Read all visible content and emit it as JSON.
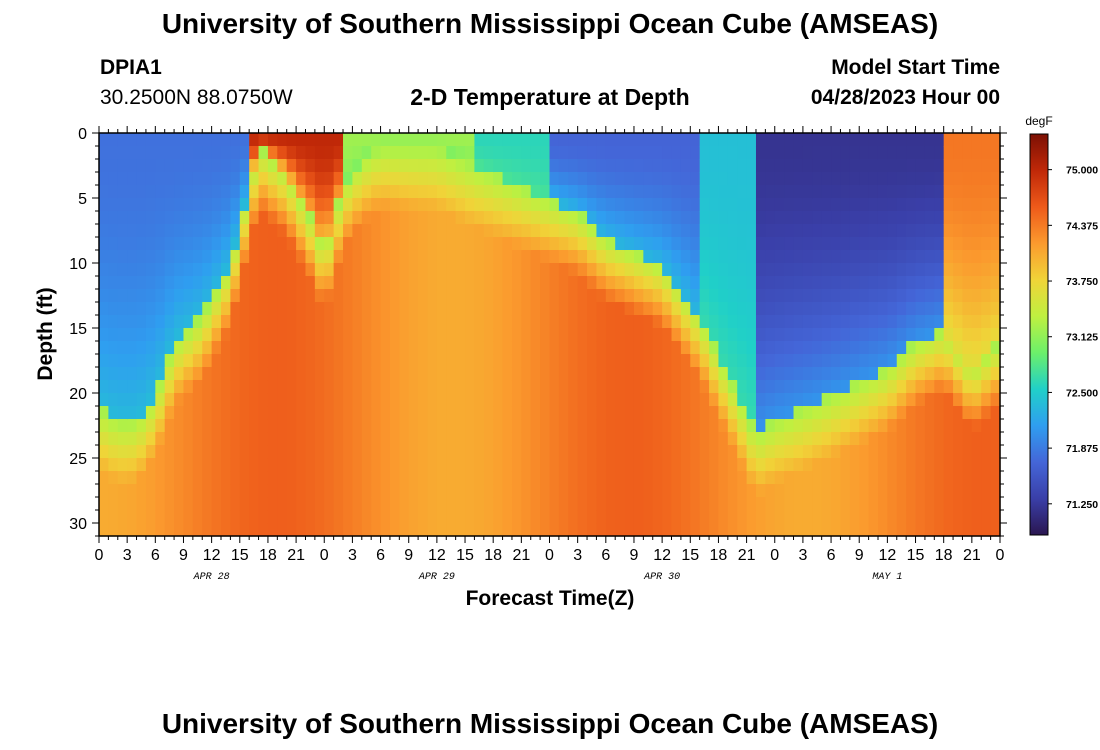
{
  "header": {
    "title_top": "University of Southern Mississippi Ocean Cube (AMSEAS)",
    "title_bottom": "University of Southern Mississippi Ocean Cube (AMSEAS)",
    "station": "DPIA1",
    "coords": "30.2500N  88.0750W",
    "subtitle": "2-D Temperature at Depth",
    "start_label": "Model Start Time",
    "start_value": "04/28/2023 Hour 00"
  },
  "chart_data": {
    "type": "heatmap",
    "title": "2-D Temperature at Depth",
    "xlabel": "Forecast Time(Z)",
    "ylabel": "Depth (ft)",
    "x_range_hours": [
      0,
      96
    ],
    "x_tick_hours": [
      0,
      3,
      6,
      9,
      12,
      15,
      18,
      21,
      24,
      27,
      30,
      33,
      36,
      39,
      42,
      45,
      48,
      51,
      54,
      57,
      60,
      63,
      66,
      69,
      72,
      75,
      78,
      81,
      84,
      87,
      90,
      93,
      96
    ],
    "x_tick_labels": [
      "0",
      "3",
      "6",
      "9",
      "12",
      "15",
      "18",
      "21",
      "0",
      "3",
      "6",
      "9",
      "12",
      "15",
      "18",
      "21",
      "0",
      "3",
      "6",
      "9",
      "12",
      "15",
      "18",
      "21",
      "0",
      "3",
      "6",
      "9",
      "12",
      "15",
      "18",
      "21",
      "0"
    ],
    "date_labels": [
      {
        "text": "APR 28",
        "hour": 12
      },
      {
        "text": "APR 29",
        "hour": 36
      },
      {
        "text": "APR 30",
        "hour": 60
      },
      {
        "text": "MAY 1",
        "hour": 84
      }
    ],
    "y_range": [
      0,
      31
    ],
    "y_ticks": [
      0,
      5,
      10,
      15,
      20,
      25,
      30
    ],
    "y_tick_labels": [
      "0",
      "5",
      "10",
      "15",
      "20",
      "25",
      "30"
    ],
    "colorbar": {
      "units": "degF",
      "min": 70.9,
      "max": 75.4,
      "tick_values": [
        75.0,
        74.375,
        73.75,
        73.125,
        72.5,
        71.875,
        71.25
      ],
      "tick_labels": [
        "75.000",
        "74.375",
        "73.750",
        "73.125",
        "72.500",
        "71.875",
        "71.250"
      ],
      "colors": [
        "#2a1650",
        "#3a3fa8",
        "#4466d8",
        "#2f9ef0",
        "#20d0c8",
        "#6cf06a",
        "#bff040",
        "#f0d438",
        "#fb9a2e",
        "#ee5a1a",
        "#c02808",
        "#7c1004"
      ]
    },
    "thermocline_depth_ft": [
      {
        "hour": 0,
        "depth": 21
      },
      {
        "hour": 2,
        "depth": 22
      },
      {
        "hour": 4,
        "depth": 22
      },
      {
        "hour": 6,
        "depth": 20
      },
      {
        "hour": 8,
        "depth": 16
      },
      {
        "hour": 11,
        "depth": 14
      },
      {
        "hour": 14,
        "depth": 10
      },
      {
        "hour": 16,
        "depth": 4
      },
      {
        "hour": 17,
        "depth": 1
      },
      {
        "hour": 20,
        "depth": 3
      },
      {
        "hour": 23,
        "depth": 7
      },
      {
        "hour": 24,
        "depth": 9
      },
      {
        "hour": 26,
        "depth": 4
      },
      {
        "hour": 28,
        "depth": 2
      },
      {
        "hour": 30,
        "depth": 1
      },
      {
        "hour": 33,
        "depth": 1
      },
      {
        "hour": 36,
        "depth": 1
      },
      {
        "hour": 39,
        "depth": 2
      },
      {
        "hour": 42,
        "depth": 3
      },
      {
        "hour": 45,
        "depth": 4
      },
      {
        "hour": 48,
        "depth": 5
      },
      {
        "hour": 51,
        "depth": 6
      },
      {
        "hour": 54,
        "depth": 8
      },
      {
        "hour": 57,
        "depth": 9
      },
      {
        "hour": 60,
        "depth": 10
      },
      {
        "hour": 62,
        "depth": 12
      },
      {
        "hour": 64,
        "depth": 14
      },
      {
        "hour": 66,
        "depth": 17
      },
      {
        "hour": 68,
        "depth": 20
      },
      {
        "hour": 70,
        "depth": 23
      },
      {
        "hour": 72,
        "depth": 22
      },
      {
        "hour": 75,
        "depth": 21
      },
      {
        "hour": 78,
        "depth": 20
      },
      {
        "hour": 81,
        "depth": 19
      },
      {
        "hour": 84,
        "depth": 18
      },
      {
        "hour": 87,
        "depth": 16
      },
      {
        "hour": 90,
        "depth": 15
      },
      {
        "hour": 93,
        "depth": 18
      },
      {
        "hour": 96,
        "depth": 16
      }
    ]
  }
}
